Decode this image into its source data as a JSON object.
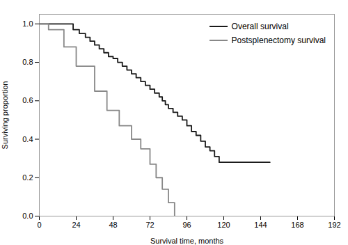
{
  "chart_data": {
    "type": "step",
    "xlabel": "Survival time, months",
    "ylabel": "Surviving proportion",
    "series": [
      {
        "name": "Overall survival",
        "color": "#1a1a1a",
        "x": [
          0,
          18,
          22,
          26,
          30,
          33,
          36,
          39,
          42,
          45,
          48,
          51,
          54,
          57,
          60,
          63,
          66,
          69,
          72,
          75,
          78,
          80,
          82,
          84,
          87,
          90,
          93,
          96,
          99,
          102,
          105,
          108,
          111,
          114,
          117,
          150
        ],
        "values": [
          1.0,
          1.0,
          0.97,
          0.95,
          0.93,
          0.91,
          0.89,
          0.87,
          0.85,
          0.83,
          0.82,
          0.8,
          0.78,
          0.76,
          0.74,
          0.72,
          0.7,
          0.68,
          0.66,
          0.64,
          0.62,
          0.6,
          0.58,
          0.56,
          0.54,
          0.52,
          0.5,
          0.47,
          0.44,
          0.42,
          0.39,
          0.36,
          0.34,
          0.31,
          0.28,
          0.28
        ]
      },
      {
        "name": "Postsplenectomy survival",
        "color": "#888888",
        "x": [
          0,
          6,
          16,
          24,
          36,
          44,
          52,
          60,
          66,
          72,
          76,
          80,
          84,
          88
        ],
        "values": [
          1.0,
          0.97,
          0.88,
          0.78,
          0.65,
          0.55,
          0.47,
          0.4,
          0.35,
          0.27,
          0.2,
          0.14,
          0.07,
          0.0
        ]
      }
    ],
    "xlim": [
      0,
      192
    ],
    "ylim": [
      0.0,
      1.05
    ],
    "xticks": [
      0,
      24,
      48,
      72,
      96,
      120,
      144,
      168,
      192
    ],
    "yticks": [
      {
        "value": 0.0,
        "label": "0.0"
      },
      0.2,
      0.4,
      0.6,
      0.8,
      {
        "value": 1.0,
        "label": "1.0"
      }
    ],
    "grid": false,
    "legend": "upper right"
  }
}
